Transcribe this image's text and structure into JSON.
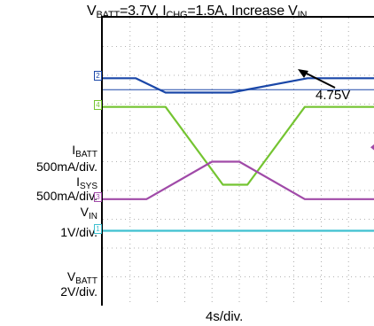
{
  "header": {
    "title_parts": [
      "V",
      "BATT",
      "=3.7V, I",
      "CHG",
      "=1.5A, Increase V",
      "IN"
    ]
  },
  "chart_data": {
    "type": "line",
    "title": "VBATT=3.7V, ICHG=1.5A, Increase VIN",
    "xlabel": "4s/div.",
    "x_divisions": 10,
    "y_divisions": 10,
    "grid": true,
    "annotation": "4.75V",
    "series": [
      {
        "name": "VBATT",
        "scale": "2V/div.",
        "color": "#1a47a8",
        "marker": "2",
        "x": [
          0,
          1.2,
          2.3,
          4.7,
          7.5,
          10
        ],
        "y": [
          7.9,
          7.9,
          7.4,
          7.4,
          7.9,
          7.9
        ]
      },
      {
        "name": "ISYS",
        "scale": "500mA/div.",
        "color": "#74c431",
        "marker": "4",
        "x": [
          0,
          2.3,
          4.4,
          5.3,
          7.4,
          10
        ],
        "y": [
          6.9,
          6.9,
          4.2,
          4.2,
          6.9,
          6.9
        ]
      },
      {
        "name": "VIN",
        "scale": "1V/div.",
        "color": "#a04aa8",
        "marker": "3",
        "x": [
          0,
          1.6,
          4.0,
          5.0,
          7.4,
          10
        ],
        "y": [
          3.7,
          3.7,
          5.0,
          5.0,
          3.7,
          3.7
        ]
      },
      {
        "name": "IBATT",
        "scale": "500mA/div.",
        "color": "#3fc0d0",
        "marker": "1",
        "x": [
          0,
          10
        ],
        "y": [
          2.6,
          2.6
        ]
      }
    ],
    "threshold_line": {
      "y": 7.5,
      "color": "#1a47a8"
    },
    "channel_labels": [
      {
        "name": "IBATT",
        "scale": "500mA/div."
      },
      {
        "name": "ISYS",
        "scale": "500mA/div."
      },
      {
        "name": "VIN",
        "scale": "1V/div."
      },
      {
        "name": "VBATT",
        "scale": "2V/div."
      }
    ]
  }
}
